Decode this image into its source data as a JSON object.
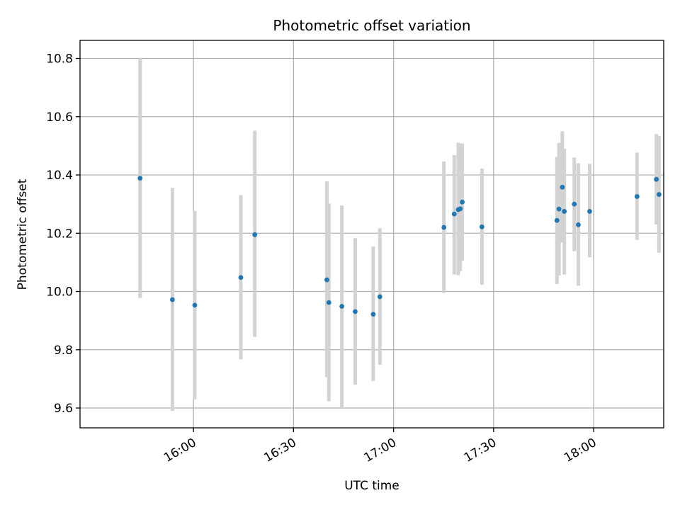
{
  "chart_data": {
    "type": "scatter",
    "title": "Photometric offset variation",
    "xlabel": "UTC time",
    "ylabel": "Photometric offset",
    "x_ticks": [
      "16:00",
      "16:30",
      "17:00",
      "17:30",
      "18:00"
    ],
    "x_tick_minutes": [
      960,
      990,
      1020,
      1050,
      1080
    ],
    "xlim_minutes": [
      926,
      1101
    ],
    "y_ticks": [
      "9.6",
      "9.8",
      "10.0",
      "10.2",
      "10.4",
      "10.6",
      "10.8"
    ],
    "y_tick_values": [
      9.6,
      9.8,
      10.0,
      10.2,
      10.4,
      10.6,
      10.8
    ],
    "ylim": [
      9.532,
      10.862
    ],
    "grid": true,
    "marker_color": "#1f77b4",
    "errorbar_color": "#d3d3d3",
    "points": [
      {
        "t": 944.0,
        "y": 10.389,
        "lo": 9.978,
        "hi": 10.802
      },
      {
        "t": 953.7,
        "y": 9.972,
        "lo": 9.59,
        "hi": 10.356
      },
      {
        "t": 960.4,
        "y": 9.953,
        "lo": 9.63,
        "hi": 10.276
      },
      {
        "t": 974.2,
        "y": 10.048,
        "lo": 9.767,
        "hi": 10.331
      },
      {
        "t": 978.4,
        "y": 10.195,
        "lo": 9.844,
        "hi": 10.552
      },
      {
        "t": 1000.0,
        "y": 10.04,
        "lo": 9.706,
        "hi": 10.378
      },
      {
        "t": 1000.6,
        "y": 9.962,
        "lo": 9.623,
        "hi": 10.302
      },
      {
        "t": 1004.5,
        "y": 9.949,
        "lo": 9.6,
        "hi": 10.295
      },
      {
        "t": 1008.5,
        "y": 9.931,
        "lo": 9.68,
        "hi": 10.183
      },
      {
        "t": 1013.9,
        "y": 9.922,
        "lo": 9.693,
        "hi": 10.155
      },
      {
        "t": 1015.9,
        "y": 9.982,
        "lo": 9.748,
        "hi": 10.217
      },
      {
        "t": 1035.1,
        "y": 10.22,
        "lo": 9.995,
        "hi": 10.446
      },
      {
        "t": 1038.2,
        "y": 10.266,
        "lo": 10.058,
        "hi": 10.468
      },
      {
        "t": 1039.4,
        "y": 10.281,
        "lo": 10.056,
        "hi": 10.511
      },
      {
        "t": 1040.0,
        "y": 10.284,
        "lo": 10.07,
        "hi": 10.507
      },
      {
        "t": 1040.6,
        "y": 10.307,
        "lo": 10.106,
        "hi": 10.508
      },
      {
        "t": 1046.5,
        "y": 10.222,
        "lo": 10.023,
        "hi": 10.422
      },
      {
        "t": 1069.0,
        "y": 10.244,
        "lo": 10.026,
        "hi": 10.462
      },
      {
        "t": 1069.6,
        "y": 10.283,
        "lo": 10.055,
        "hi": 10.51
      },
      {
        "t": 1070.6,
        "y": 10.358,
        "lo": 10.168,
        "hi": 10.55
      },
      {
        "t": 1071.2,
        "y": 10.275,
        "lo": 10.058,
        "hi": 10.49
      },
      {
        "t": 1074.2,
        "y": 10.3,
        "lo": 10.138,
        "hi": 10.46
      },
      {
        "t": 1075.4,
        "y": 10.229,
        "lo": 10.02,
        "hi": 10.44
      },
      {
        "t": 1078.8,
        "y": 10.275,
        "lo": 10.117,
        "hi": 10.438
      },
      {
        "t": 1093.0,
        "y": 10.326,
        "lo": 10.177,
        "hi": 10.477
      },
      {
        "t": 1098.8,
        "y": 10.385,
        "lo": 10.23,
        "hi": 10.54
      },
      {
        "t": 1099.6,
        "y": 10.333,
        "lo": 10.133,
        "hi": 10.534
      }
    ]
  }
}
